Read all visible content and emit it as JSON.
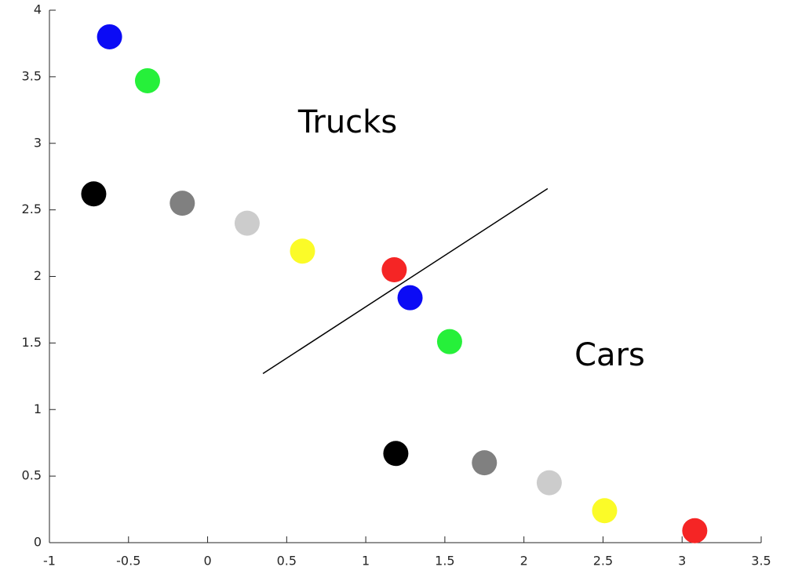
{
  "chart_data": {
    "type": "scatter",
    "x": [
      -0.62,
      -0.38,
      -0.72,
      -0.16,
      0.25,
      0.6,
      1.18,
      1.28,
      1.53,
      1.19,
      1.75,
      2.16,
      2.51,
      3.08
    ],
    "y": [
      3.8,
      3.47,
      2.62,
      2.55,
      2.4,
      2.19,
      2.05,
      1.84,
      1.51,
      0.67,
      0.6,
      0.45,
      0.24,
      0.09
    ],
    "colors": [
      "#0b0bf5",
      "#26f03a",
      "#000000",
      "#808080",
      "#cccccc",
      "#fbfb28",
      "#f52525",
      "#0b0bf5",
      "#26f03a",
      "#000000",
      "#808080",
      "#cccccc",
      "#fbfb28",
      "#f52525"
    ],
    "boundary": {
      "x": [
        0.35,
        2.15
      ],
      "y": [
        1.27,
        2.66
      ],
      "color": "#000000"
    },
    "annotations": [
      "Trucks",
      "Cars"
    ],
    "xlim": [
      -1,
      3.5
    ],
    "xticks": [
      -1,
      -0.5,
      0,
      0.5,
      1,
      1.5,
      2,
      2.5,
      3,
      3.5
    ],
    "ylim": [
      0,
      4
    ],
    "yticks": [
      0,
      0.5,
      1,
      1.5,
      2,
      2.5,
      3,
      3.5,
      4
    ]
  }
}
